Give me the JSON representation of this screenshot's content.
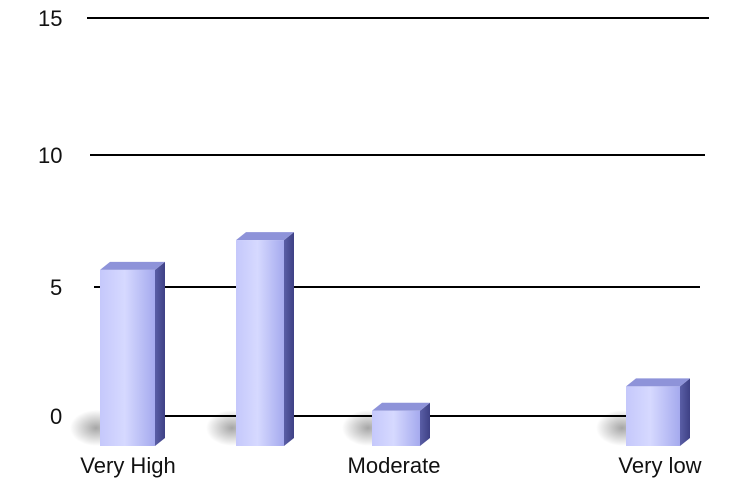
{
  "chart_data": {
    "type": "bar",
    "style": "3d",
    "categories": [
      "Very High",
      "",
      "Moderate",
      "",
      "Very low"
    ],
    "values": [
      6.5,
      7.6,
      1.3,
      0,
      2.2
    ],
    "yticks": [
      "0",
      "5",
      "10",
      "15"
    ],
    "ylim": [
      0,
      15
    ],
    "grid": true,
    "legend": "none",
    "colors": {
      "bar_front": "#b9bdf6",
      "bar_side": "#5b5fa6",
      "bar_top": "#8e93d9",
      "gridline": "#000000"
    }
  }
}
